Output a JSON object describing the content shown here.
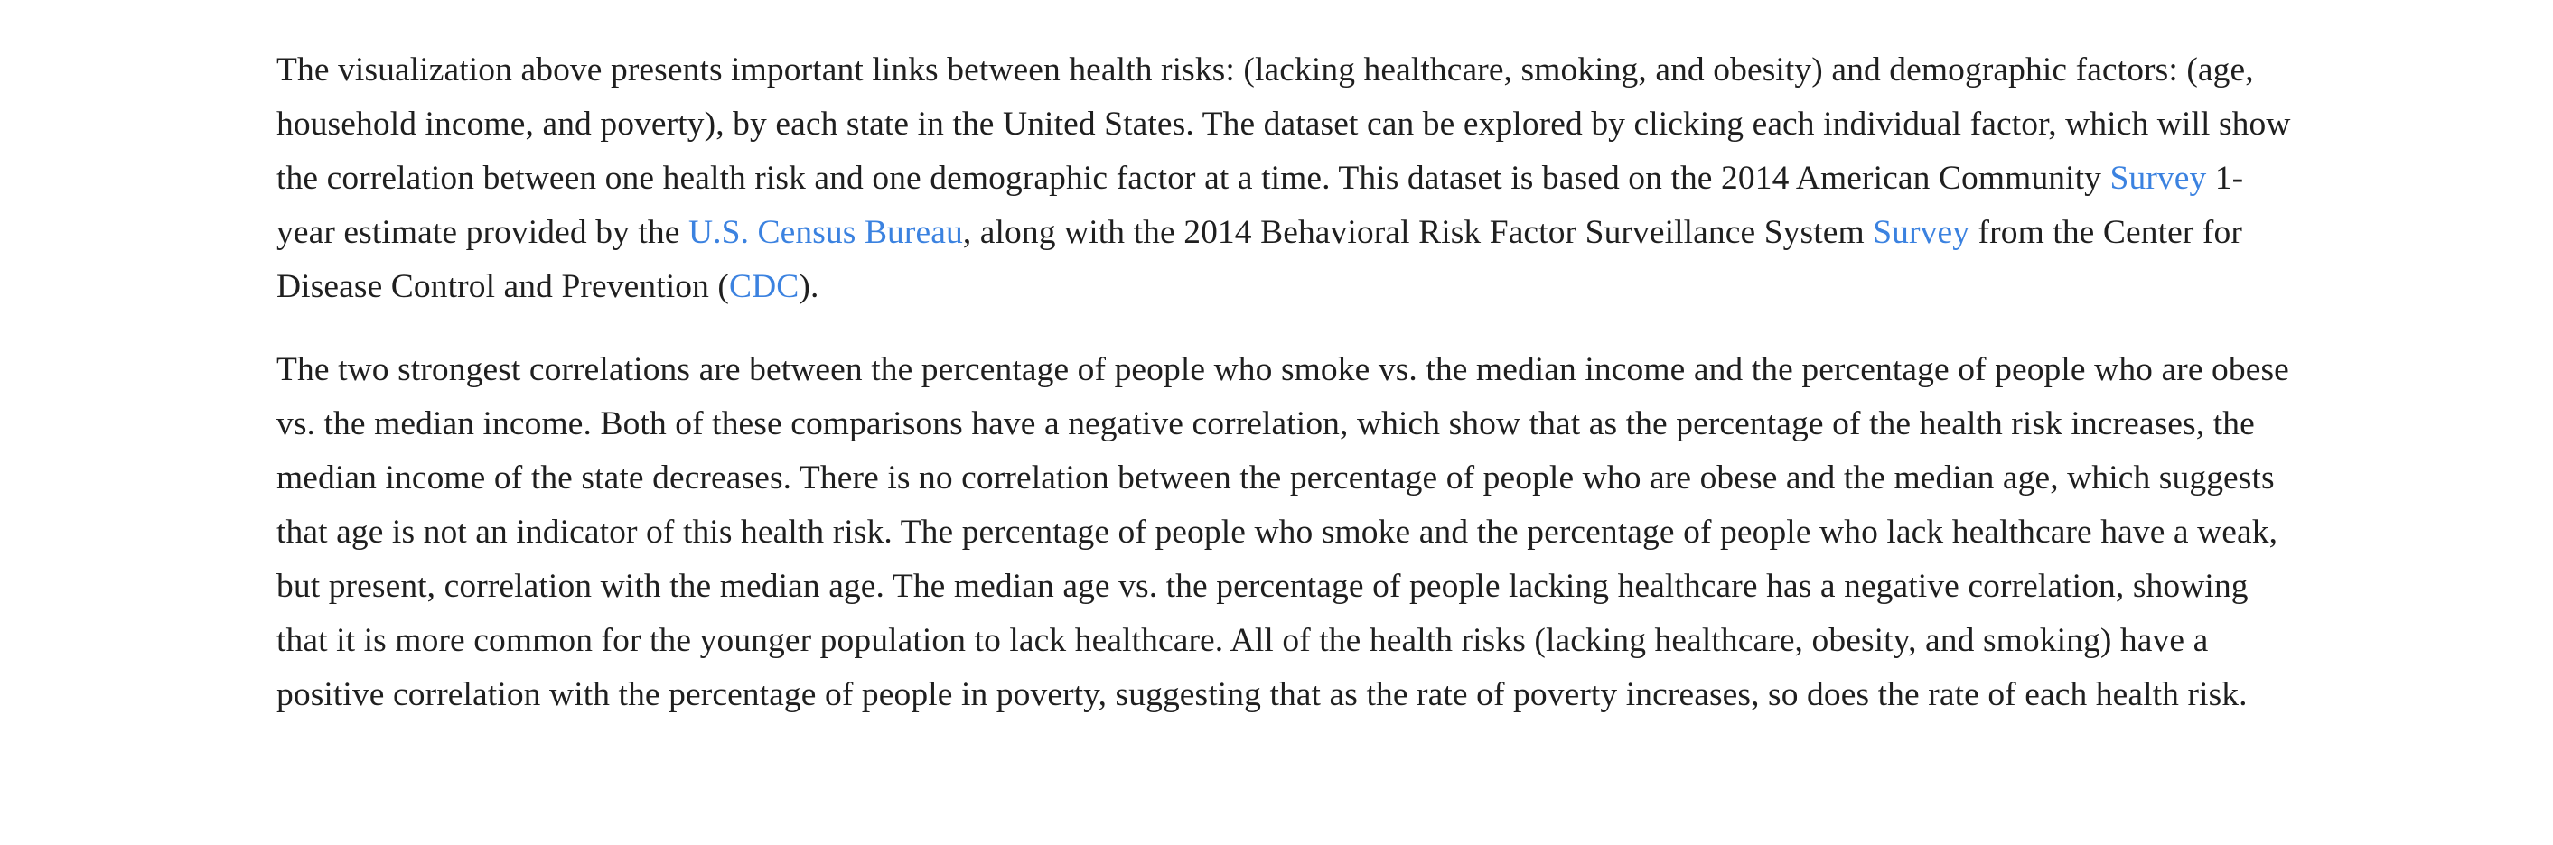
{
  "paragraph1": {
    "t1": "The visualization above presents important links between health risks: (lacking healthcare, smoking, and obesity) and demographic factors: (age, household income, and poverty), by each state in the United States. The dataset can be explored by clicking each individual factor, which will show the correlation between one health risk and one demographic factor at a time. This dataset is based on the 2014 American Community ",
    "link_survey_1": "Survey",
    "t2": " 1-year estimate provided by the ",
    "link_census": "U.S. Census Bureau",
    "t3": ", along with the 2014 Behavioral Risk Factor Surveillance System ",
    "link_survey_2": "Survey",
    "t4": " from the Center for Disease Control and Prevention (",
    "link_cdc": "CDC",
    "t5": ")."
  },
  "paragraph2": {
    "text": "The two strongest correlations are between the percentage of people who smoke vs. the median income and the percentage of people who are obese vs. the median income. Both of these comparisons have a negative correlation, which show that as the percentage of the health risk increases, the median income of the state decreases. There is no correlation between the percentage of people who are obese and the median age, which suggests that age is not an indicator of this health risk. The percentage of people who smoke and the percentage of people who lack healthcare have a weak, but present, correlation with the median age. The median age vs. the percentage of people lacking healthcare has a negative correlation, showing that it is more common for the younger population to lack healthcare. All of the health risks (lacking healthcare, obesity, and smoking) have a positive correlation with the percentage of people in poverty, suggesting that as the rate of poverty increases, so does the rate of each health risk."
  },
  "colors": {
    "text": "#1f1f1f",
    "link": "#3b82e0",
    "background": "#ffffff"
  }
}
